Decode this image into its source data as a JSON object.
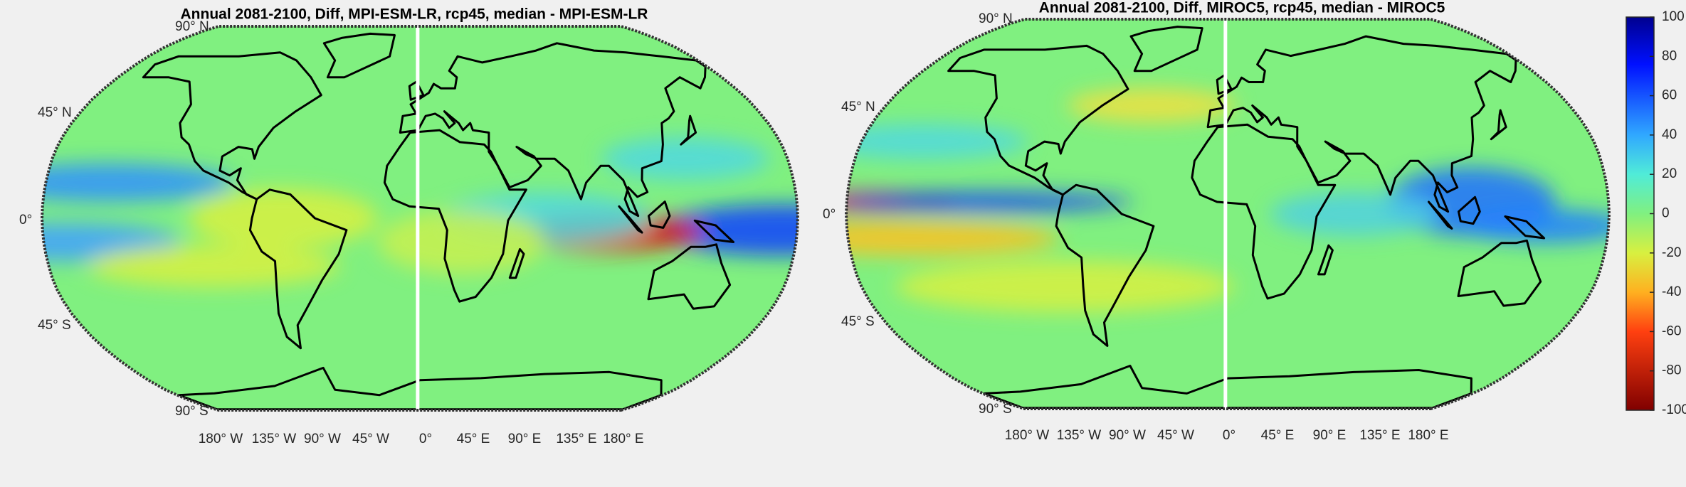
{
  "maps": [
    {
      "title": "Annual 2081-2100, Diff, MPI-ESM-LR, rcp45, median - MPI-ESM-LR",
      "lat_labels": [
        "90° N",
        "45° N",
        "0°",
        "45° S",
        "90° S"
      ],
      "lon_labels": [
        "180° W",
        "135° W",
        "90° W",
        "45° W",
        "0°",
        "45° E",
        "90° E",
        "135° E",
        "180° E"
      ]
    },
    {
      "title": "Annual 2081-2100, Diff, MIROC5, rcp45, median - MIROC5",
      "lat_labels": [
        "90° N",
        "45° N",
        "0°",
        "45° S",
        "90° S"
      ],
      "lon_labels": [
        "180° W",
        "135° W",
        "90° W",
        "45° W",
        "0°",
        "45° E",
        "90° E",
        "135° E",
        "180° E"
      ]
    }
  ],
  "colorbar": {
    "ticks": [
      100,
      80,
      60,
      40,
      20,
      0,
      -20,
      -40,
      -60,
      -80,
      -100
    ]
  }
}
